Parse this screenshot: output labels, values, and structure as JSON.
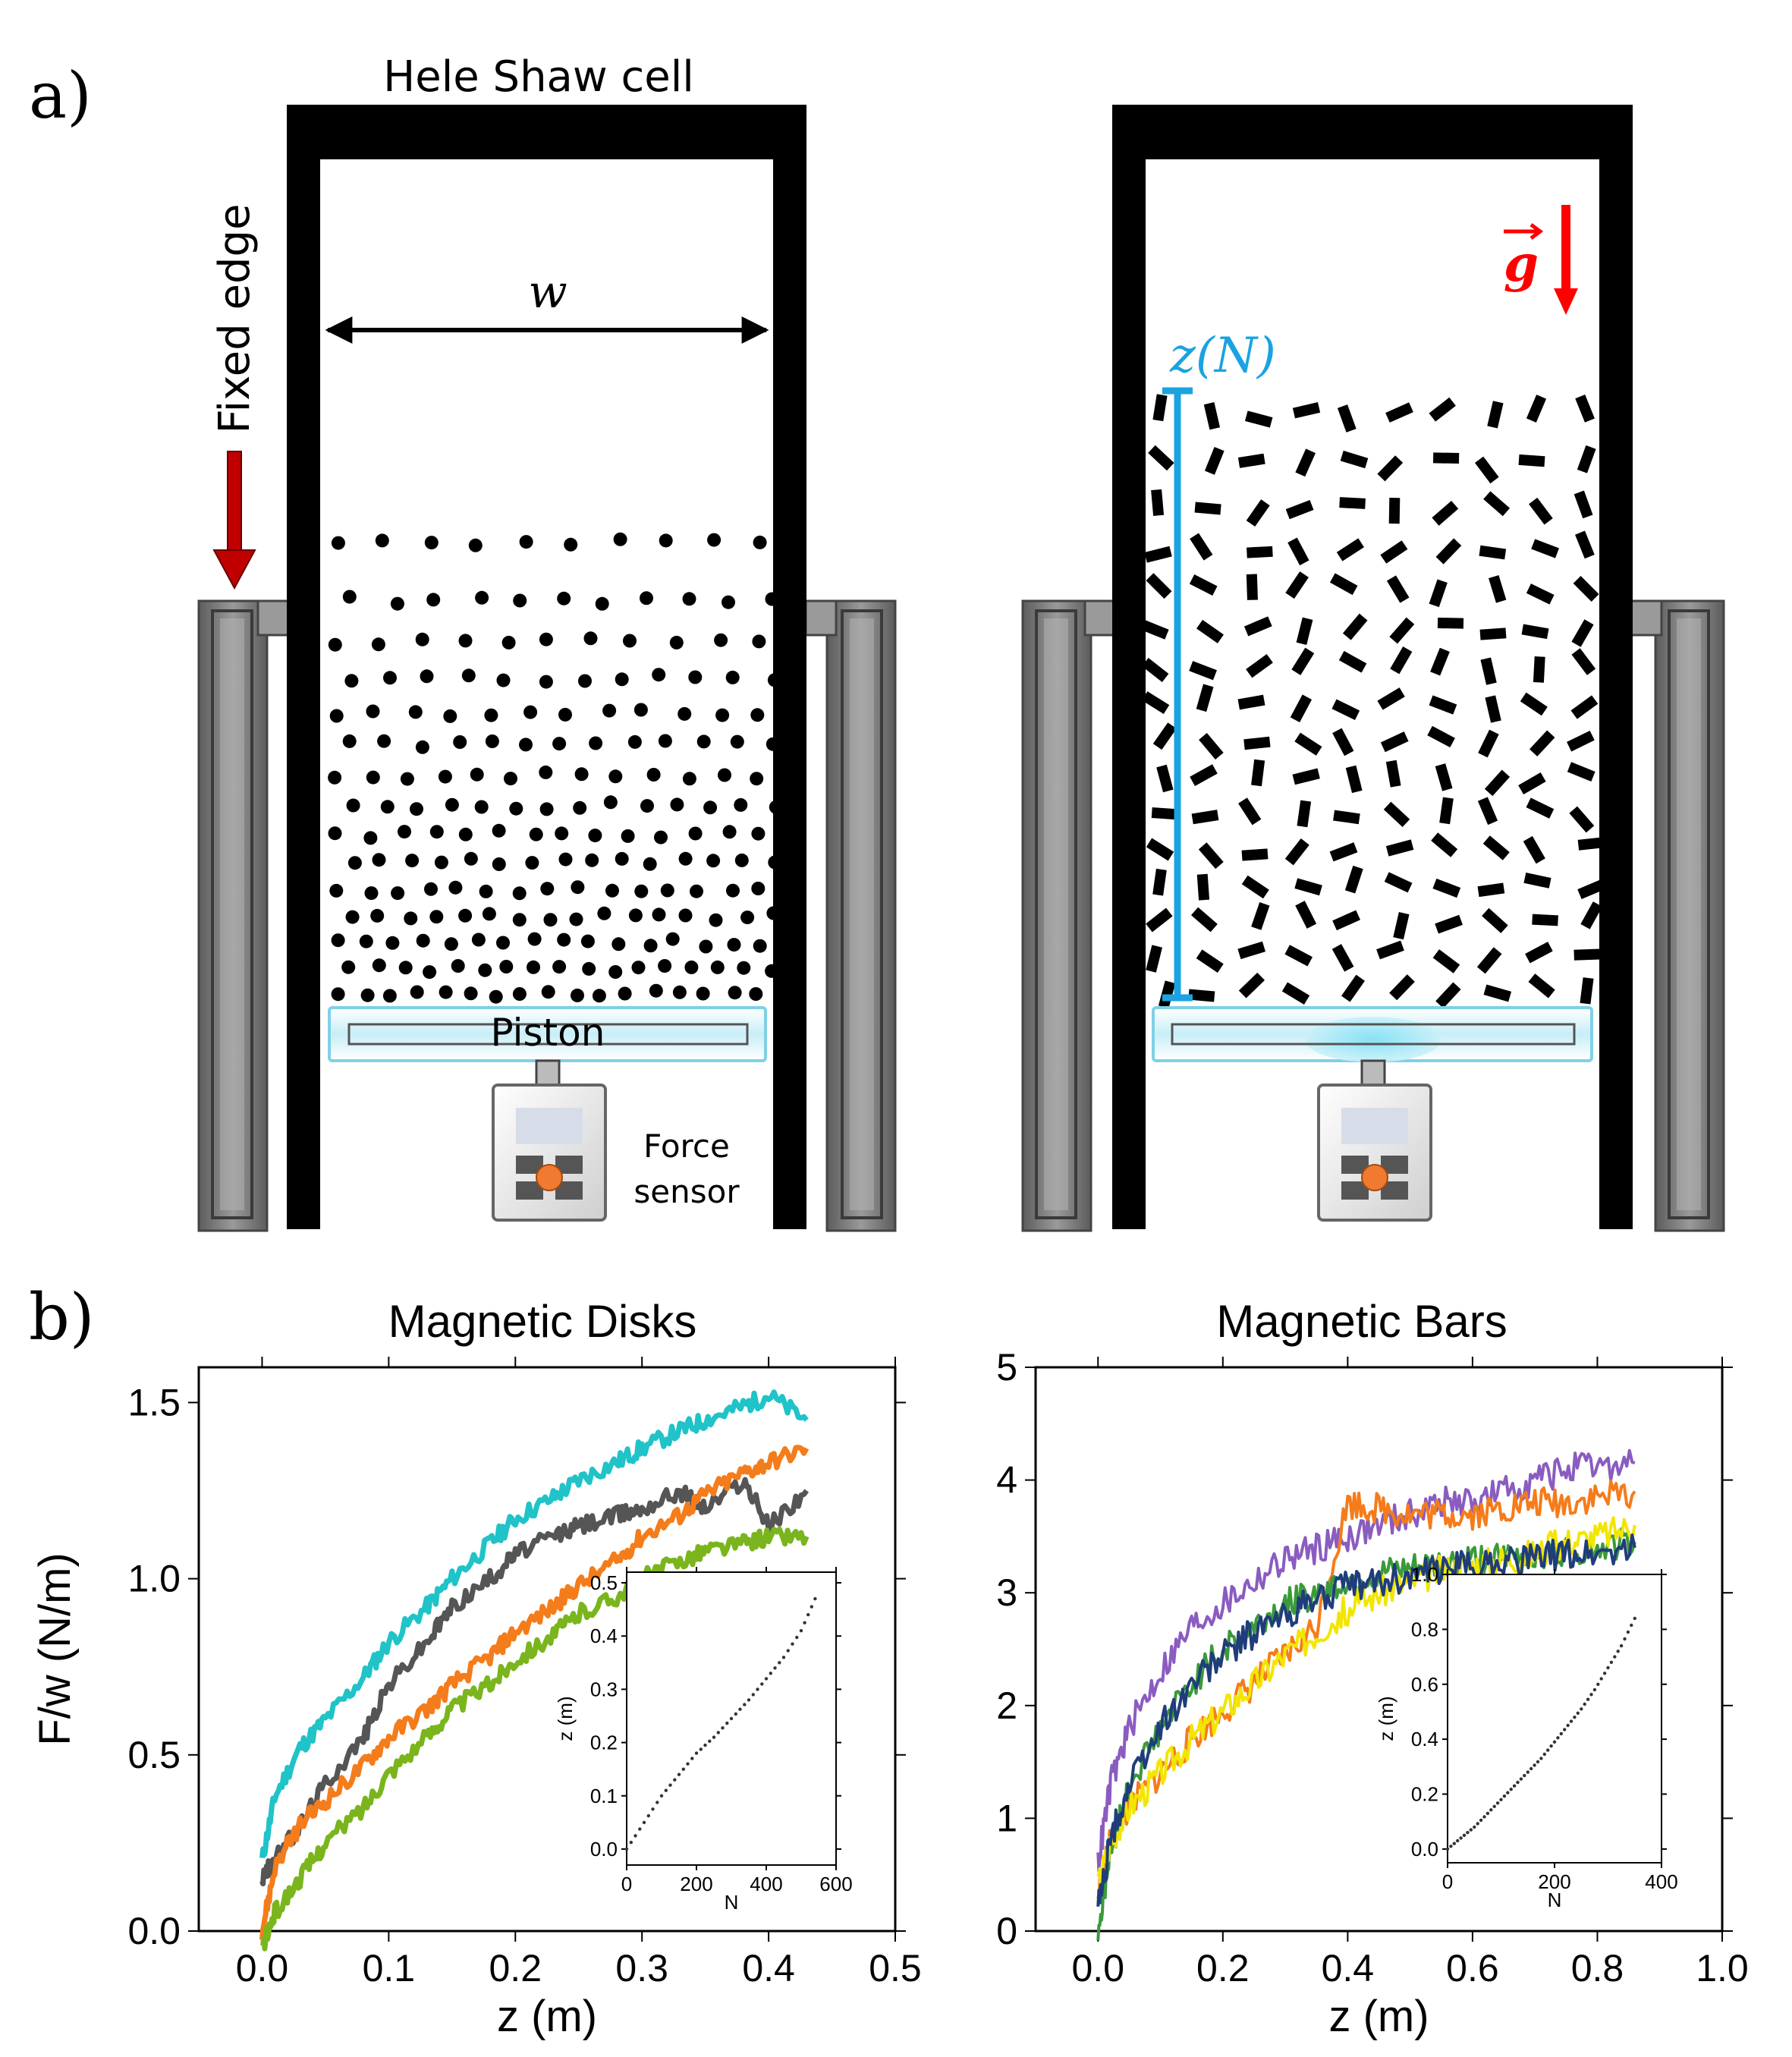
{
  "panel_a": {
    "letter": "a)",
    "cell_title": "Hele Shaw cell",
    "fixed_edge_label": "Fixed edge",
    "width_label": "w",
    "piston_label": "Piston",
    "force_sensor_label_line1": "Force",
    "force_sensor_label_line2": "sensor",
    "height_label": "z(N)",
    "gravity_label": "g",
    "colors": {
      "frame": "#000000",
      "arrow_fixed_edge": "#c00000",
      "gravity": "#ff0000",
      "height_bar": "#1aa3e0",
      "sensor_button": "#ef7a30"
    }
  },
  "panel_b": {
    "letter": "b)"
  },
  "chart_data": [
    {
      "type": "line",
      "title": "Magnetic Disks",
      "xlabel": "z (m)",
      "ylabel": "F/w (N/m)",
      "xlim": [
        -0.05,
        0.5
      ],
      "ylim": [
        0.0,
        1.6
      ],
      "x_ticks": [
        "0.0",
        "0.1",
        "0.2",
        "0.3",
        "0.4",
        "0.5"
      ],
      "y_ticks": [
        "0.0",
        "0.5",
        "1.0",
        "1.5"
      ],
      "x_tick_values": [
        0.0,
        0.1,
        0.2,
        0.3,
        0.4,
        0.5
      ],
      "y_tick_values": [
        0.0,
        0.5,
        1.0,
        1.5
      ],
      "series": [
        {
          "color": "#1fc3c8",
          "x": [
            0.0,
            0.01,
            0.03,
            0.05,
            0.08,
            0.1,
            0.13,
            0.15,
            0.18,
            0.2,
            0.23,
            0.25,
            0.28,
            0.3,
            0.33,
            0.35,
            0.38,
            0.4,
            0.43
          ],
          "y": [
            0.2,
            0.38,
            0.52,
            0.6,
            0.72,
            0.82,
            0.92,
            1.0,
            1.1,
            1.17,
            1.23,
            1.28,
            1.33,
            1.37,
            1.42,
            1.45,
            1.49,
            1.52,
            1.45
          ]
        },
        {
          "color": "#555555",
          "x": [
            0.0,
            0.01,
            0.03,
            0.05,
            0.08,
            0.1,
            0.13,
            0.15,
            0.18,
            0.2,
            0.23,
            0.25,
            0.28,
            0.3,
            0.33,
            0.35,
            0.38,
            0.4,
            0.43
          ],
          "y": [
            0.15,
            0.2,
            0.3,
            0.42,
            0.55,
            0.7,
            0.82,
            0.92,
            1.0,
            1.07,
            1.12,
            1.15,
            1.18,
            1.2,
            1.25,
            1.2,
            1.28,
            1.15,
            1.25
          ]
        },
        {
          "color": "#f57c1a",
          "x": [
            0.0,
            0.01,
            0.03,
            0.05,
            0.08,
            0.1,
            0.13,
            0.15,
            0.18,
            0.2,
            0.23,
            0.25,
            0.28,
            0.3,
            0.33,
            0.35,
            0.38,
            0.4,
            0.43
          ],
          "y": [
            0.0,
            0.18,
            0.3,
            0.37,
            0.47,
            0.55,
            0.63,
            0.7,
            0.78,
            0.85,
            0.92,
            0.98,
            1.05,
            1.12,
            1.18,
            1.24,
            1.3,
            1.33,
            1.37
          ]
        },
        {
          "color": "#7ab51d",
          "x": [
            0.0,
            0.01,
            0.03,
            0.05,
            0.08,
            0.1,
            0.13,
            0.15,
            0.18,
            0.2,
            0.23,
            0.25,
            0.28,
            0.3,
            0.33,
            0.35,
            0.38,
            0.4,
            0.43
          ],
          "y": [
            -0.05,
            0.05,
            0.15,
            0.25,
            0.35,
            0.45,
            0.55,
            0.63,
            0.7,
            0.77,
            0.84,
            0.9,
            0.95,
            1.0,
            1.05,
            1.08,
            1.1,
            1.12,
            1.12
          ]
        }
      ],
      "inset": {
        "xlabel": "N",
        "ylabel": "z (m)",
        "xlim": [
          0,
          600
        ],
        "ylim": [
          -0.03,
          0.52
        ],
        "x_ticks": [
          "0",
          "200",
          "400",
          "600"
        ],
        "y_ticks": [
          "0.0",
          "0.1",
          "0.2",
          "0.3",
          "0.4",
          "0.5"
        ],
        "x_tick_values": [
          0,
          200,
          400,
          600
        ],
        "y_tick_values": [
          0.0,
          0.1,
          0.2,
          0.3,
          0.4,
          0.5
        ],
        "x": [
          0,
          50,
          100,
          150,
          200,
          250,
          300,
          350,
          400,
          450,
          500,
          540
        ],
        "y": [
          0.0,
          0.05,
          0.1,
          0.14,
          0.18,
          0.21,
          0.245,
          0.28,
          0.32,
          0.36,
          0.41,
          0.47
        ]
      }
    },
    {
      "type": "line",
      "title": "Magnetic Bars",
      "xlabel": "z (m)",
      "ylabel": "",
      "xlim": [
        -0.1,
        1.0
      ],
      "ylim": [
        0,
        5
      ],
      "x_ticks": [
        "0.0",
        "0.2",
        "0.4",
        "0.6",
        "0.8",
        "1.0"
      ],
      "y_ticks": [
        "0",
        "1",
        "2",
        "3",
        "4",
        "5"
      ],
      "x_tick_values": [
        0.0,
        0.2,
        0.4,
        0.6,
        0.8,
        1.0
      ],
      "y_tick_values": [
        0,
        1,
        2,
        3,
        4,
        5
      ],
      "series": [
        {
          "color": "#8a5cc0",
          "x": [
            0.0,
            0.02,
            0.05,
            0.1,
            0.15,
            0.2,
            0.25,
            0.3,
            0.35,
            0.4,
            0.45,
            0.5,
            0.55,
            0.6,
            0.65,
            0.7,
            0.75,
            0.8,
            0.86
          ],
          "y": [
            0.6,
            1.3,
            1.8,
            2.3,
            2.7,
            2.9,
            3.1,
            3.3,
            3.4,
            3.5,
            3.6,
            3.7,
            3.8,
            3.8,
            3.9,
            4.0,
            4.1,
            4.1,
            4.15
          ]
        },
        {
          "color": "#f57c1a",
          "x": [
            0.0,
            0.02,
            0.05,
            0.1,
            0.15,
            0.2,
            0.25,
            0.3,
            0.35,
            0.4,
            0.45,
            0.5,
            0.55,
            0.6,
            0.65,
            0.7,
            0.75,
            0.8,
            0.86
          ],
          "y": [
            0.3,
            0.8,
            1.1,
            1.4,
            1.7,
            1.95,
            2.2,
            2.45,
            2.7,
            3.8,
            3.75,
            3.7,
            3.7,
            3.7,
            3.75,
            3.8,
            3.8,
            3.85,
            3.9
          ]
        },
        {
          "color": "#3a9a3a",
          "x": [
            0.0,
            0.02,
            0.05,
            0.1,
            0.15,
            0.2,
            0.25,
            0.3,
            0.35,
            0.4,
            0.45,
            0.5,
            0.55,
            0.6,
            0.65,
            0.7,
            0.75,
            0.8,
            0.86
          ],
          "y": [
            0.0,
            0.7,
            1.3,
            1.8,
            2.2,
            2.5,
            2.7,
            2.9,
            3.0,
            3.1,
            3.15,
            3.2,
            3.25,
            3.3,
            3.3,
            3.35,
            3.35,
            3.4,
            3.45
          ]
        },
        {
          "color": "#f2e600",
          "x": [
            0.0,
            0.02,
            0.05,
            0.1,
            0.15,
            0.2,
            0.25,
            0.3,
            0.35,
            0.4,
            0.45,
            0.5,
            0.55,
            0.6,
            0.65,
            0.7,
            0.75,
            0.8,
            0.86
          ],
          "y": [
            0.4,
            0.8,
            1.1,
            1.4,
            1.7,
            1.95,
            2.2,
            2.45,
            2.65,
            2.85,
            3.0,
            3.1,
            3.2,
            3.25,
            3.3,
            3.35,
            3.45,
            3.5,
            3.6
          ]
        },
        {
          "color": "#1f3d7a",
          "x": [
            0.0,
            0.02,
            0.05,
            0.1,
            0.15,
            0.2,
            0.25,
            0.3,
            0.35,
            0.4,
            0.45,
            0.5,
            0.55,
            0.6,
            0.65,
            0.7,
            0.75,
            0.8,
            0.86
          ],
          "y": [
            0.2,
            0.8,
            1.3,
            1.8,
            2.2,
            2.45,
            2.65,
            2.8,
            2.95,
            3.05,
            3.1,
            3.15,
            3.2,
            3.25,
            3.3,
            3.3,
            3.35,
            3.35,
            3.4
          ]
        }
      ],
      "inset": {
        "xlabel": "N",
        "ylabel": "z (m)",
        "xlim": [
          0,
          400
        ],
        "ylim": [
          -0.05,
          1.0
        ],
        "x_ticks": [
          "0",
          "200",
          "400"
        ],
        "y_ticks": [
          "0.0",
          "0.2",
          "0.4",
          "0.6",
          "0.8",
          "1.0"
        ],
        "x_tick_values": [
          0,
          200,
          400
        ],
        "y_tick_values": [
          0.0,
          0.2,
          0.4,
          0.6,
          0.8,
          1.0
        ],
        "x": [
          0,
          25,
          50,
          75,
          100,
          125,
          150,
          175,
          200,
          225,
          250,
          275,
          300,
          325,
          350
        ],
        "y": [
          0.0,
          0.04,
          0.08,
          0.13,
          0.18,
          0.23,
          0.28,
          0.33,
          0.39,
          0.45,
          0.51,
          0.58,
          0.66,
          0.74,
          0.84
        ]
      }
    }
  ]
}
